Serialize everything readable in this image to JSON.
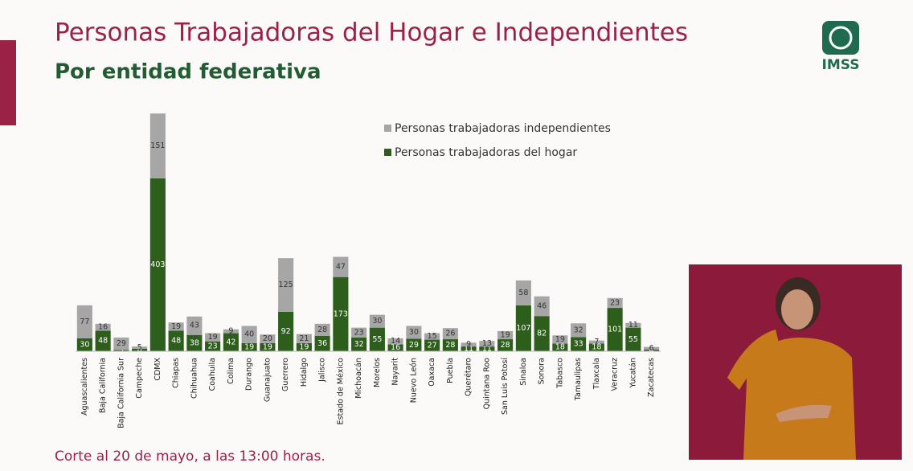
{
  "chart_data": {
    "type": "stacked_bar",
    "title": "Personas Trabajadoras del Hogar e Independientes",
    "subtitle": "Por entidad federativa",
    "categories": [
      "Aguascalientes",
      "Baja California",
      "Baja California Sur",
      "Campeche",
      "CDMX",
      "Chiapas",
      "Chihuahua",
      "Coahuila",
      "Colima",
      "Durango",
      "Guanajuato",
      "Guerrero",
      "Hidalgo",
      "Jalisco",
      "Estado de México",
      "Michoacán",
      "Morelos",
      "Nayarit",
      "Nuevo León",
      "Oaxaca",
      "Puebla",
      "Querétaro",
      "Quintana Roo",
      "San Luis Potosí",
      "Sinaloa",
      "Sonora",
      "Tabasco",
      "Tamaulipas",
      "Tlaxcala",
      "Veracruz",
      "Yucatán",
      "Zacatecas"
    ],
    "series": [
      {
        "name": "Personas trabajadoras del hogar",
        "color": "#2e5e1c",
        "values": [
          30,
          48,
          3,
          6,
          403,
          48,
          38,
          23,
          42,
          19,
          19,
          92,
          19,
          36,
          173,
          32,
          55,
          16,
          29,
          27,
          28,
          11,
          11,
          28,
          107,
          82,
          18,
          33,
          18,
          101,
          55,
          4
        ]
      },
      {
        "name": "Personas trabajadoras independientes",
        "color": "#a6a6a6",
        "values": [
          77,
          16,
          29,
          5,
          151,
          19,
          43,
          19,
          9,
          40,
          20,
          125,
          21,
          28,
          47,
          23,
          30,
          14,
          30,
          15,
          26,
          9,
          13,
          19,
          58,
          46,
          19,
          32,
          7,
          23,
          11,
          6
        ]
      }
    ],
    "ylim": [
      0,
      590
    ]
  },
  "footer": "Corte al 20 de mayo, a las 13:00 horas.",
  "logo": "IMSS"
}
